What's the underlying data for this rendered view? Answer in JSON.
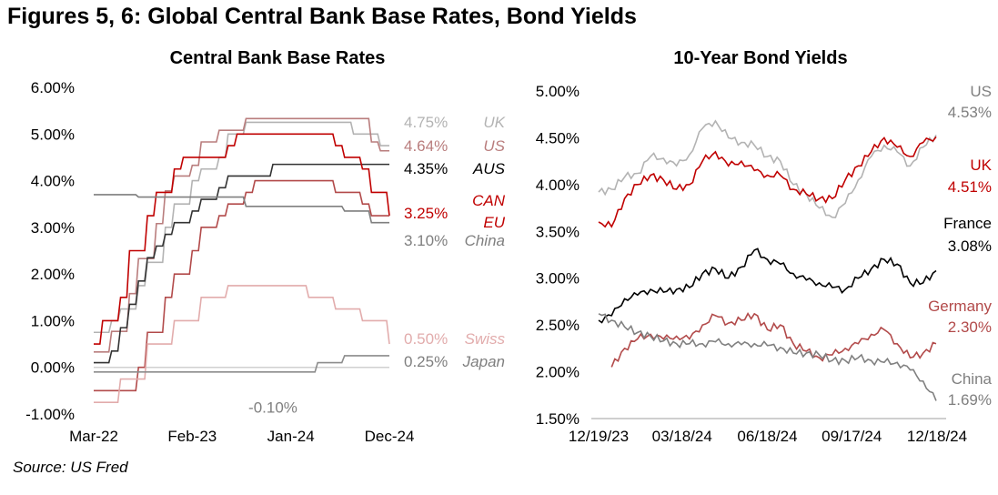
{
  "title": "Figures 5, 6: Global Central Bank Base Rates, Bond Yields",
  "source": "Source: US Fred",
  "chart_data": [
    {
      "type": "line",
      "title": "Central Bank Base Rates",
      "x_unit": "months since Mar-22",
      "xticks": [
        {
          "x": 0,
          "label": "Mar-22"
        },
        {
          "x": 11,
          "label": "Feb-23"
        },
        {
          "x": 22,
          "label": "Jan-24"
        },
        {
          "x": 33,
          "label": "Dec-24"
        }
      ],
      "ylim": [
        -1,
        6
      ],
      "yticks": [
        {
          "v": 6,
          "label": "6.00%"
        },
        {
          "v": 5,
          "label": "5.00%"
        },
        {
          "v": 4,
          "label": "4.00%"
        },
        {
          "v": 3,
          "label": "3.00%"
        },
        {
          "v": 2,
          "label": "2.00%"
        },
        {
          "v": 1,
          "label": "1.00%"
        },
        {
          "v": 0,
          "label": "0.00%"
        },
        {
          "v": -1,
          "label": "-1.00%"
        }
      ],
      "series": [
        {
          "name": "UK",
          "end_label": "4.75%",
          "color": "#b3b3b3",
          "points": [
            [
              0,
              0.75
            ],
            [
              2,
              1.0
            ],
            [
              3,
              1.25
            ],
            [
              5,
              1.75
            ],
            [
              6,
              2.25
            ],
            [
              8,
              3.0
            ],
            [
              9,
              3.5
            ],
            [
              11,
              4.0
            ],
            [
              12,
              4.25
            ],
            [
              14,
              4.5
            ],
            [
              15,
              5.0
            ],
            [
              17,
              5.25
            ],
            [
              29,
              5.0
            ],
            [
              32,
              4.75
            ],
            [
              33,
              4.75
            ]
          ]
        },
        {
          "name": "US",
          "end_label": "4.64%",
          "color": "#b97d7d",
          "points": [
            [
              0,
              0.33
            ],
            [
              2,
              0.77
            ],
            [
              4,
              1.58
            ],
            [
              5,
              2.33
            ],
            [
              7,
              3.08
            ],
            [
              8,
              3.78
            ],
            [
              9,
              4.1
            ],
            [
              11,
              4.33
            ],
            [
              12,
              4.83
            ],
            [
              14,
              5.08
            ],
            [
              17,
              5.33
            ],
            [
              30,
              5.33
            ],
            [
              31,
              4.83
            ],
            [
              32,
              4.64
            ],
            [
              33,
              4.64
            ]
          ]
        },
        {
          "name": "AUS",
          "end_label": "4.35%",
          "color": "#333333",
          "points": [
            [
              0,
              0.1
            ],
            [
              2,
              0.35
            ],
            [
              3,
              0.85
            ],
            [
              4,
              1.35
            ],
            [
              5,
              1.85
            ],
            [
              6,
              2.35
            ],
            [
              7,
              2.6
            ],
            [
              8,
              2.85
            ],
            [
              9,
              3.1
            ],
            [
              11,
              3.35
            ],
            [
              12,
              3.6
            ],
            [
              14,
              3.85
            ],
            [
              15,
              4.1
            ],
            [
              20,
              4.35
            ],
            [
              33,
              4.35
            ]
          ]
        },
        {
          "name": "CAN",
          "end_label": "3.25%",
          "color": "#c00000",
          "points": [
            [
              0,
              0.5
            ],
            [
              1,
              1.0
            ],
            [
              3,
              1.5
            ],
            [
              4,
              2.5
            ],
            [
              6,
              3.25
            ],
            [
              7,
              3.75
            ],
            [
              9,
              4.25
            ],
            [
              10,
              4.5
            ],
            [
              15,
              4.75
            ],
            [
              16,
              5.0
            ],
            [
              27,
              4.75
            ],
            [
              28,
              4.5
            ],
            [
              30,
              4.25
            ],
            [
              31,
              3.75
            ],
            [
              33,
              3.25
            ]
          ]
        },
        {
          "name": "EU",
          "end_label": "3.25%",
          "color": "#b24a4a",
          "points": [
            [
              0,
              -0.5
            ],
            [
              4,
              -0.5
            ],
            [
              5,
              0.0
            ],
            [
              6,
              0.75
            ],
            [
              8,
              1.5
            ],
            [
              9,
              2.0
            ],
            [
              11,
              2.5
            ],
            [
              12,
              3.0
            ],
            [
              14,
              3.25
            ],
            [
              15,
              3.5
            ],
            [
              17,
              3.75
            ],
            [
              18,
              4.0
            ],
            [
              27,
              3.75
            ],
            [
              30,
              3.5
            ],
            [
              31,
              3.25
            ],
            [
              33,
              3.25
            ]
          ]
        },
        {
          "name": "China",
          "end_label": "3.10%",
          "color": "#7f7f7f",
          "points": [
            [
              0,
              3.7
            ],
            [
              5,
              3.65
            ],
            [
              17,
              3.45
            ],
            [
              28,
              3.35
            ],
            [
              31,
              3.1
            ],
            [
              33,
              3.1
            ]
          ]
        },
        {
          "name": "Swiss",
          "end_label": "0.50%",
          "color": "#e2acac",
          "points": [
            [
              0,
              -0.75
            ],
            [
              3,
              -0.25
            ],
            [
              6,
              0.5
            ],
            [
              9,
              1.0
            ],
            [
              12,
              1.5
            ],
            [
              15,
              1.75
            ],
            [
              24,
              1.5
            ],
            [
              27,
              1.25
            ],
            [
              30,
              1.0
            ],
            [
              33,
              0.5
            ]
          ]
        },
        {
          "name": "Japan",
          "end_label": "0.25%",
          "color": "#8c8c8c",
          "points": [
            [
              0,
              -0.1
            ],
            [
              24,
              -0.1
            ],
            [
              25,
              0.1
            ],
            [
              28,
              0.25
            ],
            [
              33,
              0.25
            ]
          ]
        }
      ],
      "annotations": [
        {
          "text": "-0.10%",
          "x": 20,
          "y": -0.85
        }
      ]
    },
    {
      "type": "line",
      "title": "10-Year Bond Yields",
      "x_unit": "days since 12/19/23",
      "xticks": [
        {
          "x": 0,
          "label": "12/19/23"
        },
        {
          "x": 90,
          "label": "03/18/24"
        },
        {
          "x": 182,
          "label": "06/18/24"
        },
        {
          "x": 273,
          "label": "09/17/24"
        },
        {
          "x": 365,
          "label": "12/18/24"
        }
      ],
      "ylim": [
        1.5,
        5.0
      ],
      "yticks": [
        {
          "v": 5,
          "label": "5.00%"
        },
        {
          "v": 4.5,
          "label": "4.50%"
        },
        {
          "v": 4,
          "label": "4.00%"
        },
        {
          "v": 3.5,
          "label": "3.50%"
        },
        {
          "v": 3,
          "label": "3.00%"
        },
        {
          "v": 2.5,
          "label": "2.50%"
        },
        {
          "v": 2,
          "label": "2.00%"
        },
        {
          "v": 1.5,
          "label": "1.50%"
        }
      ],
      "x_step_days": 14,
      "series": [
        {
          "name": "US",
          "end_label": "4.53%",
          "color": "#b3b3b3",
          "values": [
            3.92,
            3.95,
            4.08,
            4.12,
            4.3,
            4.28,
            4.2,
            4.32,
            4.6,
            4.68,
            4.5,
            4.45,
            4.42,
            4.3,
            4.25,
            4.0,
            3.9,
            3.75,
            3.65,
            3.8,
            4.05,
            4.3,
            4.42,
            4.35,
            4.2,
            4.4,
            4.53
          ]
        },
        {
          "name": "UK",
          "end_label": "4.51%",
          "color": "#c00000",
          "values": [
            3.6,
            3.55,
            3.85,
            4.0,
            4.1,
            4.05,
            3.95,
            4.0,
            4.25,
            4.35,
            4.2,
            4.25,
            4.15,
            4.1,
            4.1,
            3.95,
            3.9,
            3.85,
            3.85,
            4.05,
            4.2,
            4.35,
            4.5,
            4.4,
            4.3,
            4.45,
            4.51
          ]
        },
        {
          "name": "France",
          "end_label": "3.08%",
          "color": "#000000",
          "values": [
            2.55,
            2.6,
            2.78,
            2.82,
            2.88,
            2.85,
            2.88,
            2.9,
            3.05,
            3.1,
            3.0,
            3.12,
            3.3,
            3.2,
            3.15,
            3.05,
            2.98,
            2.95,
            2.9,
            2.88,
            3.0,
            3.1,
            3.2,
            3.15,
            2.95,
            2.95,
            3.08
          ]
        },
        {
          "name": "Germany",
          "end_label": "2.30%",
          "color": "#b24a4a",
          "values": [
            null,
            2.05,
            2.25,
            2.35,
            2.4,
            2.35,
            2.38,
            2.35,
            2.5,
            2.6,
            2.52,
            2.55,
            2.62,
            2.45,
            2.5,
            2.3,
            2.22,
            2.15,
            2.18,
            2.25,
            2.3,
            2.4,
            2.45,
            2.3,
            2.15,
            2.2,
            2.3
          ]
        },
        {
          "name": "China",
          "end_label": "1.69%",
          "color": "#808080",
          "values": [
            2.62,
            2.55,
            2.48,
            2.42,
            2.38,
            2.33,
            2.3,
            2.3,
            2.3,
            2.32,
            2.3,
            2.29,
            2.3,
            2.28,
            2.26,
            2.2,
            2.2,
            2.18,
            2.12,
            2.12,
            2.15,
            2.12,
            2.1,
            2.1,
            2.02,
            1.9,
            1.69
          ]
        }
      ]
    }
  ]
}
